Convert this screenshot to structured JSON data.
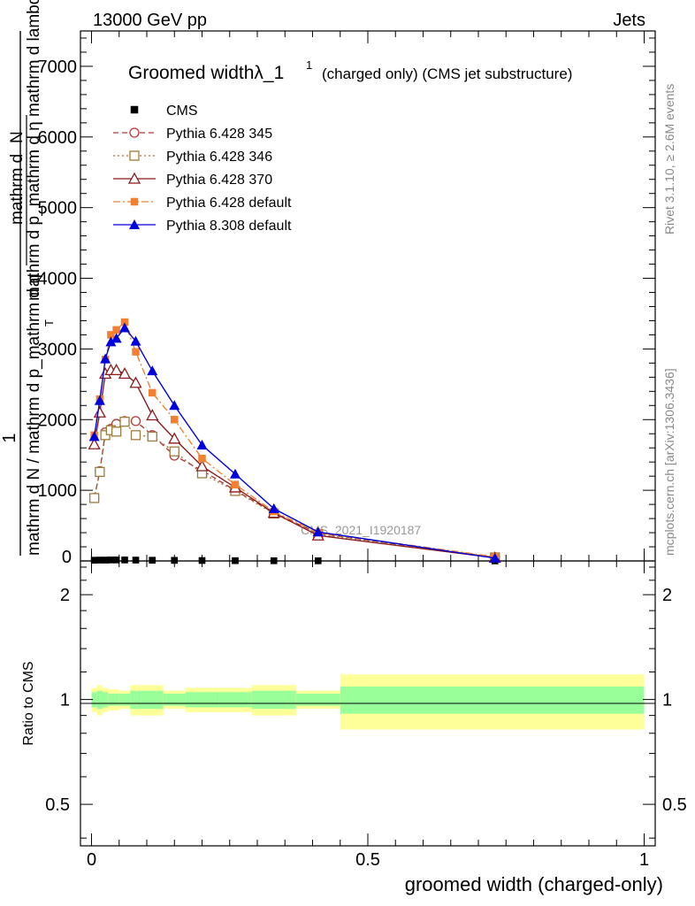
{
  "header": {
    "left": "13000 GeV pp",
    "right": "Jets"
  },
  "title": {
    "main": "Groomed width",
    "lambda": "λ_1",
    "sup": "1",
    "suffix": "(charged only) (CMS jet substructure)"
  },
  "side_labels": {
    "rivet": "Rivet 3.1.10, ≥ 2.6M events",
    "mcplots": "mcplots.cern.ch [arXiv:1306.3436]"
  },
  "watermark": "CMS_2021_I1920187",
  "ylabel": {
    "one": "1",
    "denominator": "mathrm d N / mathrm d p_mathrm d η",
    "subscript_T": "T",
    "numerator_line1": "mathrm d",
    "numerator_N": "N",
    "numerator_line2": "mathrm d p_mathrm d η mathrm d lambda"
  },
  "ratio_ylabel": "Ratio to CMS",
  "xlabel": "groomed width (charged-only)",
  "colors": {
    "cms": "#000000",
    "p345": "#b03a3a",
    "p346": "#9e7b3a",
    "p370": "#8b1a1a",
    "p6def": "#f28030",
    "p8def": "#0000dd",
    "band_inner": "#99ff99",
    "band_outer": "#ffff99"
  },
  "chart_data": {
    "type": "line",
    "title": "Groomed width λ_1^1 (charged only) (CMS jet substructure)",
    "xlabel": "groomed width (charged-only)",
    "xlim": [
      -0.02,
      1.02
    ],
    "main_ylim": [
      0,
      7500
    ],
    "main_yticks": [
      {
        "v": 1000,
        "label": "1000"
      },
      {
        "v": 2000,
        "label": "2000"
      },
      {
        "v": 3000,
        "label": "3000"
      },
      {
        "v": 4000,
        "label": "4000"
      },
      {
        "v": 5000,
        "label": "5000"
      },
      {
        "v": 6000,
        "label": "6000"
      },
      {
        "v": 7000,
        "label": "7000"
      }
    ],
    "main_ylabel_zero": "0",
    "ratio_ylim": [
      0.38,
      2.5
    ],
    "ratio_yticks": [
      {
        "v": 0.5,
        "label": "0.5"
      },
      {
        "v": 1,
        "label": "1"
      },
      {
        "v": 2,
        "label": "2"
      }
    ],
    "xticks": [
      {
        "v": 0,
        "label": "0"
      },
      {
        "v": 0.5,
        "label": "0.5"
      },
      {
        "v": 1,
        "label": "1"
      }
    ],
    "x": [
      0.005,
      0.015,
      0.025,
      0.035,
      0.045,
      0.06,
      0.08,
      0.11,
      0.15,
      0.2,
      0.26,
      0.33,
      0.41,
      0.73
    ],
    "bin_edges": [
      0,
      0.01,
      0.02,
      0.03,
      0.04,
      0.05,
      0.07,
      0.09,
      0.13,
      0.17,
      0.23,
      0.29,
      0.37,
      0.45,
      1.0
    ],
    "series": [
      {
        "name": "CMS",
        "key": "cms",
        "marker": "square-filled",
        "dash": "none",
        "values": [
          10,
          12,
          12,
          14,
          14,
          14,
          12,
          10,
          8,
          6,
          4,
          3,
          2,
          1
        ]
      },
      {
        "name": "Pythia 6.428 345",
        "key": "p345",
        "marker": "circle-open",
        "dash": "6,4",
        "values": [
          890,
          1270,
          1820,
          1870,
          1940,
          1980,
          1980,
          1780,
          1490,
          1280,
          1000,
          680,
          390,
          50
        ]
      },
      {
        "name": "Pythia 6.428 346",
        "key": "p346",
        "marker": "square-open",
        "dash": "2,3",
        "values": [
          890,
          1260,
          1780,
          1850,
          1830,
          1970,
          1780,
          1760,
          1550,
          1240,
          990,
          670,
          380,
          50
        ]
      },
      {
        "name": "Pythia 6.428 370",
        "key": "p370",
        "marker": "triangle-open",
        "dash": "none",
        "values": [
          1650,
          2100,
          2650,
          2700,
          2700,
          2650,
          2520,
          2060,
          1730,
          1340,
          1040,
          680,
          360,
          45
        ]
      },
      {
        "name": "Pythia 6.428 default",
        "key": "p6def",
        "marker": "square-filled",
        "dash": "8,3,2,3",
        "values": [
          1780,
          2290,
          2850,
          3200,
          3270,
          3380,
          2960,
          2380,
          2000,
          1450,
          1080,
          700,
          400,
          60
        ]
      },
      {
        "name": "Pythia 8.308 default",
        "key": "p8def",
        "marker": "triangle-filled",
        "dash": "none",
        "values": [
          1760,
          2270,
          2860,
          3100,
          3150,
          3300,
          3110,
          2690,
          2200,
          1640,
          1230,
          740,
          410,
          40
        ]
      }
    ],
    "ratio_band": {
      "edges": [
        0,
        0.01,
        0.02,
        0.03,
        0.04,
        0.05,
        0.07,
        0.09,
        0.13,
        0.17,
        0.23,
        0.29,
        0.37,
        0.45,
        1.0
      ],
      "inner": [
        0.05,
        0.06,
        0.05,
        0.04,
        0.04,
        0.04,
        0.06,
        0.06,
        0.04,
        0.05,
        0.05,
        0.06,
        0.04,
        0.09
      ],
      "outer": [
        0.08,
        0.1,
        0.08,
        0.07,
        0.07,
        0.06,
        0.1,
        0.1,
        0.06,
        0.08,
        0.08,
        0.1,
        0.06,
        0.18
      ]
    }
  }
}
